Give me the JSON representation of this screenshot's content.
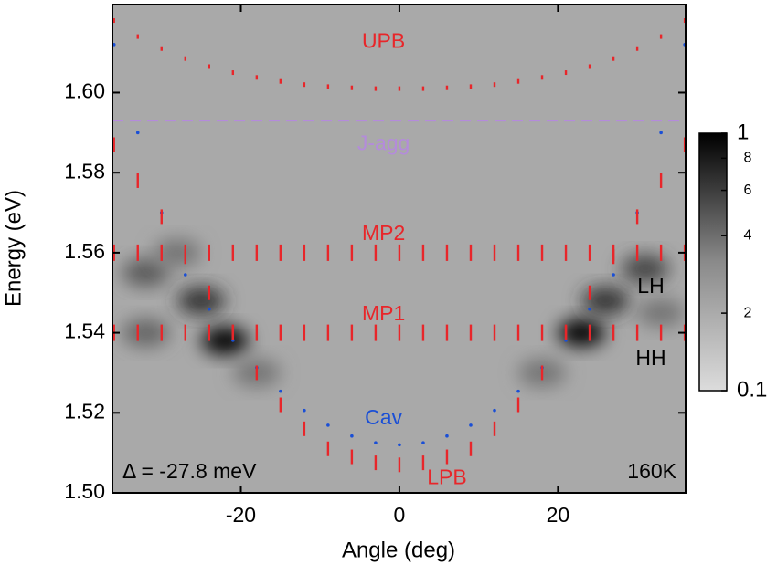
{
  "chart_data": {
    "type": "dispersion",
    "xlabel": "Angle (deg)",
    "ylabel": "Energy (eV)",
    "xlim": [
      -36.2,
      36.1
    ],
    "ylim": [
      1.5,
      1.622
    ],
    "xticks": [
      -20,
      0,
      20
    ],
    "yticks": [
      {
        "value": 1.5,
        "label": "1.50"
      },
      1.52,
      1.54,
      1.56,
      1.58,
      {
        "value": 1.6,
        "label": "1.60"
      }
    ],
    "x": [
      -36,
      -33,
      -30,
      -27,
      -24,
      -21,
      -18,
      -15,
      -12,
      -9,
      -6,
      -3,
      0,
      3,
      6,
      9,
      12,
      15,
      18,
      21,
      24,
      27,
      30,
      33,
      36
    ],
    "series": [
      {
        "name": "UPB",
        "color": "#e8262a",
        "values": [
          1.618,
          1.614,
          1.611,
          1.6085,
          1.6065,
          1.605,
          1.6038,
          1.6028,
          1.602,
          1.6015,
          1.6012,
          1.601,
          1.601,
          1.601,
          1.6012,
          1.6015,
          1.602,
          1.6028,
          1.6038,
          1.605,
          1.6065,
          1.6085,
          1.611,
          1.614,
          1.618
        ]
      },
      {
        "name": "MP2",
        "color": "#e8262a",
        "values": [
          1.56,
          1.56,
          1.56,
          1.56,
          1.56,
          1.56,
          1.56,
          1.56,
          1.56,
          1.56,
          1.56,
          1.56,
          1.56,
          1.56,
          1.56,
          1.56,
          1.56,
          1.56,
          1.56,
          1.56,
          1.56,
          1.56,
          1.56,
          1.56,
          1.56
        ]
      },
      {
        "name": "MP1",
        "color": "#e8262a",
        "values": [
          1.54,
          1.54,
          1.54,
          1.54,
          1.54,
          1.54,
          1.54,
          1.54,
          1.54,
          1.54,
          1.54,
          1.54,
          1.54,
          1.54,
          1.54,
          1.54,
          1.54,
          1.54,
          1.54,
          1.54,
          1.54,
          1.54,
          1.54,
          1.54,
          1.54
        ]
      },
      {
        "name": "Cav",
        "color": "#1a4fd6",
        "values": [
          1.612,
          1.59,
          1.57,
          1.5545,
          1.5459,
          1.5381,
          1.5313,
          1.5254,
          1.5206,
          1.5169,
          1.5142,
          1.5125,
          1.512,
          1.5125,
          1.5142,
          1.5169,
          1.5206,
          1.5254,
          1.5313,
          1.5381,
          1.5459,
          1.5545,
          1.57,
          1.59,
          1.612
        ]
      },
      {
        "name": "LPB",
        "color": "#e8262a",
        "values": [
          1.587,
          1.578,
          1.569,
          1.559,
          1.55,
          1.54,
          1.53,
          1.522,
          1.516,
          1.511,
          1.509,
          1.5075,
          1.507,
          1.5075,
          1.509,
          1.511,
          1.516,
          1.522,
          1.53,
          1.54,
          1.55,
          1.559,
          1.569,
          1.578,
          1.587
        ]
      }
    ],
    "reference_line": {
      "name": "J-agg",
      "value": 1.593,
      "color": "#b48bdb"
    },
    "intensity": {
      "x": [
        -22,
        -25,
        -32,
        -32,
        -28,
        23,
        26,
        31,
        33,
        -18,
        18
      ],
      "y": [
        1.538,
        1.548,
        1.555,
        1.54,
        1.56,
        1.54,
        1.548,
        1.556,
        1.545,
        1.53,
        1.53
      ],
      "values": [
        1,
        0.6,
        0.4,
        0.35,
        0.3,
        1,
        0.6,
        0.5,
        0.3,
        0.3,
        0.3
      ]
    },
    "colorbar": {
      "lim": [
        0.1,
        1
      ],
      "log": true,
      "ticks": [
        1,
        {
          "value": 0.8,
          "label": "8"
        },
        {
          "value": 0.6,
          "label": "6"
        },
        {
          "value": 0.4,
          "label": "4"
        },
        {
          "value": 0.2,
          "label": "2"
        },
        0.1
      ]
    },
    "annotations": [
      {
        "text": "LH",
        "color": "#000000"
      },
      {
        "text": "HH",
        "color": "#000000"
      },
      {
        "text": "Δ = -27.8 meV",
        "color": "#000000"
      },
      {
        "text": "160K",
        "color": "#000000"
      }
    ]
  }
}
